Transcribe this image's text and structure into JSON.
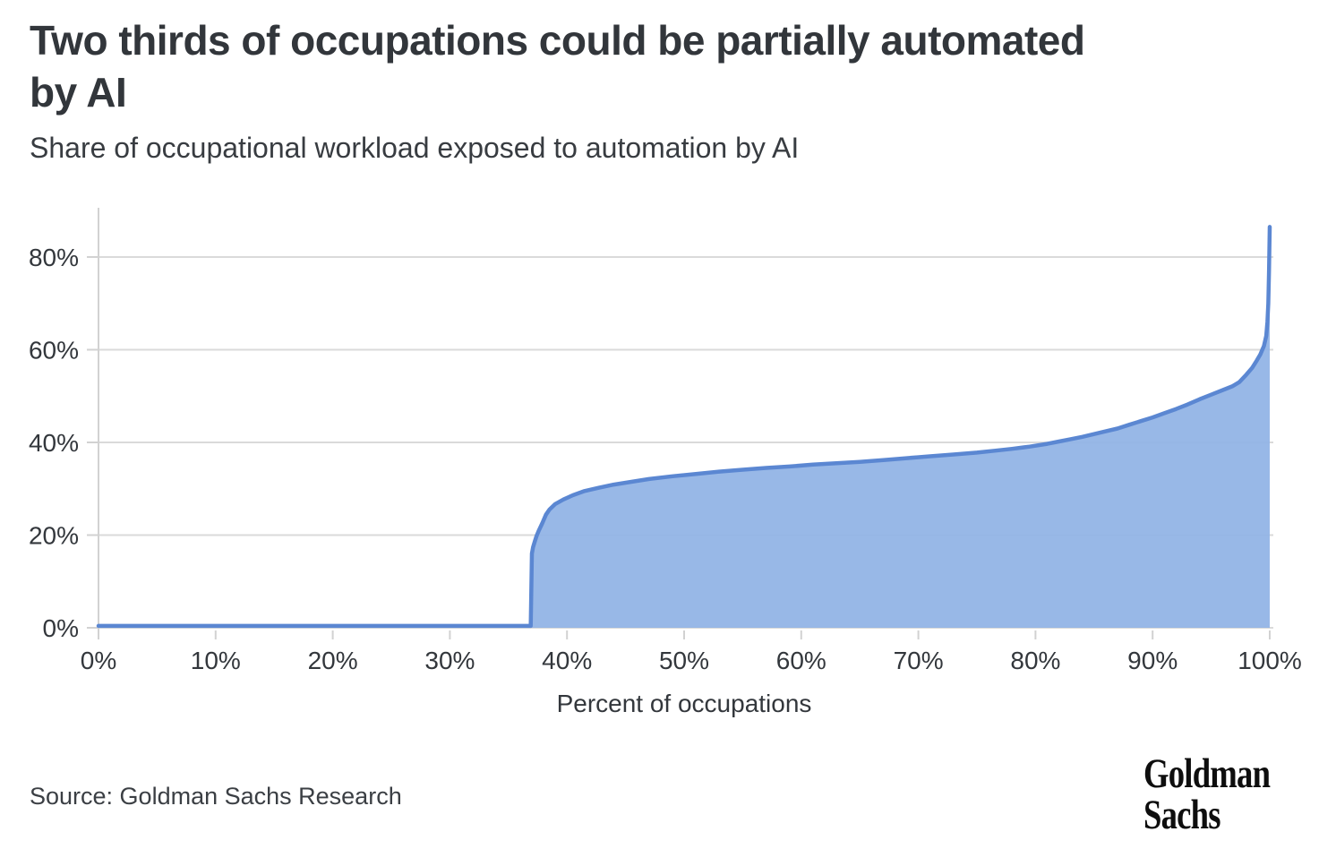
{
  "page": {
    "title_lines": [
      "Two thirds of occupations could be partially automated",
      "by AI"
    ],
    "source": "Source: Goldman Sachs Research",
    "logo": {
      "line1": "Goldman",
      "line2": "Sachs"
    }
  },
  "chart_data": {
    "type": "area",
    "title": "Two thirds of occupations could be partially automated by AI",
    "subtitle": "Share of occupational workload exposed to automation by AI",
    "xlabel": "Percent of occupations",
    "ylabel": "",
    "xlim": [
      0,
      100
    ],
    "ylim": [
      0,
      88
    ],
    "grid": "horizontal",
    "legend": "none",
    "x_ticks": [
      {
        "value": 0,
        "label": "0%"
      },
      {
        "value": 10,
        "label": "10%"
      },
      {
        "value": 20,
        "label": "20%"
      },
      {
        "value": 30,
        "label": "30%"
      },
      {
        "value": 40,
        "label": "40%"
      },
      {
        "value": 50,
        "label": "50%"
      },
      {
        "value": 60,
        "label": "60%"
      },
      {
        "value": 70,
        "label": "70%"
      },
      {
        "value": 80,
        "label": "80%"
      },
      {
        "value": 90,
        "label": "90%"
      },
      {
        "value": 100,
        "label": "100%"
      }
    ],
    "y_ticks": [
      {
        "value": 0,
        "label": "0%"
      },
      {
        "value": 20,
        "label": "20%"
      },
      {
        "value": 40,
        "label": "40%"
      },
      {
        "value": 60,
        "label": "60%"
      },
      {
        "value": 80,
        "label": "80%"
      }
    ],
    "colors": {
      "line": "#5b87d2",
      "fill": "#92b4e6",
      "grid": "#dadada",
      "axis": "#d2d2d2",
      "tick_text": "#33373c"
    },
    "series": [
      {
        "name": "Share of occupational workload exposed to automation by AI",
        "points": [
          [
            0,
            0.4
          ],
          [
            36.9,
            0.4
          ],
          [
            37,
            16
          ],
          [
            37.1,
            17.4
          ],
          [
            37.25,
            18.6
          ],
          [
            37.4,
            19.8
          ],
          [
            37.6,
            21
          ],
          [
            37.9,
            22.6
          ],
          [
            38.2,
            24.4
          ],
          [
            38.5,
            25.5
          ],
          [
            39,
            26.7
          ],
          [
            39.7,
            27.7
          ],
          [
            40.5,
            28.6
          ],
          [
            41.5,
            29.5
          ],
          [
            42.7,
            30.2
          ],
          [
            44,
            30.9
          ],
          [
            45.5,
            31.5
          ],
          [
            47,
            32.1
          ],
          [
            49,
            32.7
          ],
          [
            51,
            33.2
          ],
          [
            53,
            33.7
          ],
          [
            55,
            34.1
          ],
          [
            57,
            34.5
          ],
          [
            59,
            34.8
          ],
          [
            61,
            35.2
          ],
          [
            63,
            35.5
          ],
          [
            65,
            35.8
          ],
          [
            67,
            36.2
          ],
          [
            69,
            36.6
          ],
          [
            71,
            37
          ],
          [
            73,
            37.4
          ],
          [
            75,
            37.8
          ],
          [
            76.5,
            38.2
          ],
          [
            78,
            38.6
          ],
          [
            79.5,
            39.1
          ],
          [
            81,
            39.7
          ],
          [
            82,
            40.2
          ],
          [
            83,
            40.7
          ],
          [
            84,
            41.2
          ],
          [
            85,
            41.8
          ],
          [
            86,
            42.4
          ],
          [
            87,
            43
          ],
          [
            88,
            43.8
          ],
          [
            89,
            44.6
          ],
          [
            90,
            45.4
          ],
          [
            91,
            46.3
          ],
          [
            92,
            47.2
          ],
          [
            93,
            48.2
          ],
          [
            94,
            49.3
          ],
          [
            95,
            50.3
          ],
          [
            96,
            51.3
          ],
          [
            96.8,
            52.1
          ],
          [
            97.4,
            53
          ],
          [
            98,
            54.6
          ],
          [
            98.5,
            56.1
          ],
          [
            98.9,
            57.7
          ],
          [
            99.2,
            59
          ],
          [
            99.5,
            60.8
          ],
          [
            99.7,
            63
          ],
          [
            99.8,
            66
          ],
          [
            99.88,
            70
          ],
          [
            99.94,
            77
          ],
          [
            100,
            86.5
          ]
        ]
      }
    ]
  }
}
